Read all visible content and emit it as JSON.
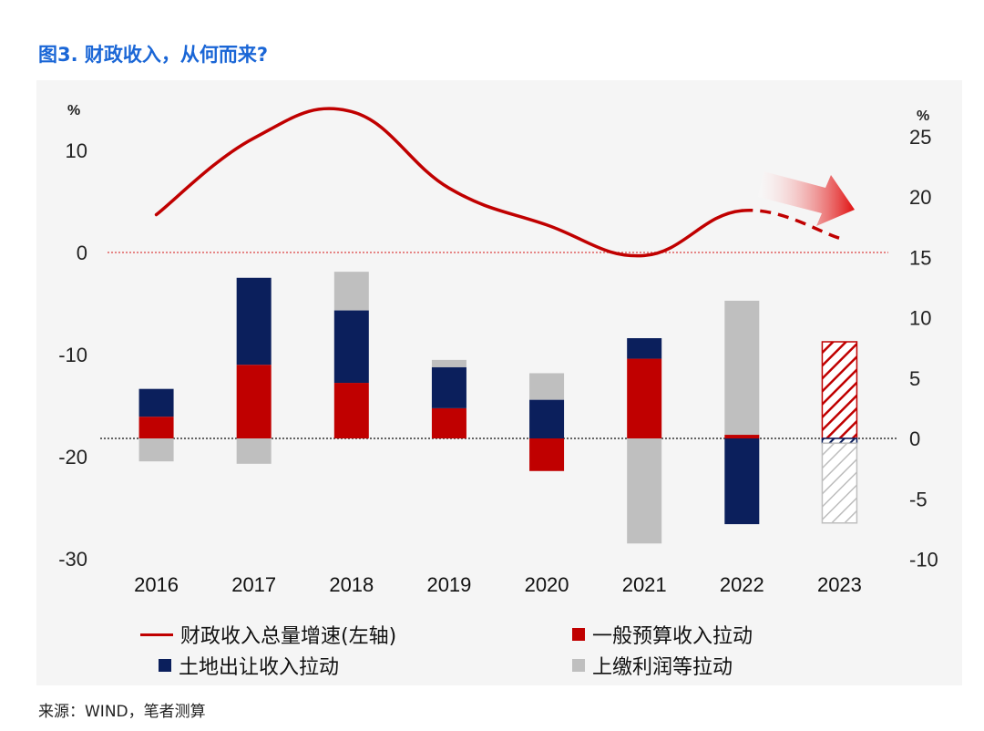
{
  "title": "图3. 财政收入，从何而来?",
  "source": "来源：WIND，笔者测算",
  "colors": {
    "line": "#c00000",
    "general_budget": "#c00000",
    "land": "#0b1f5c",
    "profit": "#bfbfbf",
    "zero_line": "#e06060",
    "background": "#f5f5f5"
  },
  "legend": {
    "line": "财政收入总量增速(左轴)",
    "general_budget": "一般预算收入拉动",
    "land": "土地出让收入拉动",
    "profit": "上缴利润等拉动"
  },
  "chart_data": {
    "type": "bar",
    "categories": [
      "2016",
      "2017",
      "2018",
      "2019",
      "2020",
      "2021",
      "2022",
      "2023"
    ],
    "left_axis": {
      "unit": "%",
      "ticks": [
        "10",
        "0",
        "-10",
        "-20",
        "-30"
      ],
      "ylim": [
        -30,
        14
      ]
    },
    "right_axis": {
      "unit": "%",
      "ticks": [
        "25",
        "20",
        "15",
        "10",
        "5",
        "0",
        "-5",
        "-10"
      ],
      "ylim": [
        -10,
        27
      ]
    },
    "line_series": {
      "name": "财政收入总量增速(左轴)",
      "axis": "left",
      "values": [
        3.7,
        11.2,
        13.8,
        6.3,
        2.7,
        -0.3,
        4.1,
        1.4
      ],
      "projected_from_index": 6
    },
    "bar_series": [
      {
        "name": "一般预算收入拉动",
        "axis": "right",
        "values": [
          1.8,
          6.1,
          4.6,
          2.5,
          -2.7,
          6.6,
          0.3,
          8.0
        ]
      },
      {
        "name": "土地出让收入拉动",
        "axis": "right",
        "values": [
          2.3,
          7.2,
          6.0,
          3.4,
          3.2,
          1.7,
          -7.1,
          -0.4
        ]
      },
      {
        "name": "上缴利润等拉动",
        "axis": "right",
        "values": [
          -1.9,
          -2.1,
          3.2,
          0.6,
          2.2,
          -8.7,
          11.1,
          -6.6
        ]
      }
    ],
    "projected_category": "2023"
  }
}
